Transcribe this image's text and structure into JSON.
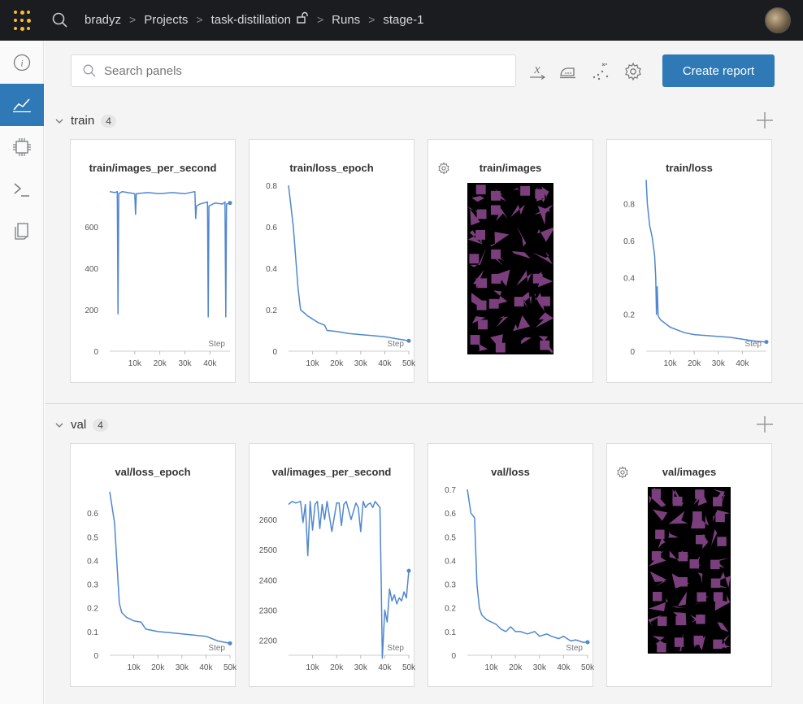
{
  "topbar": {
    "breadcrumb": [
      "bradyz",
      "Projects",
      "task-distillation",
      "Runs",
      "stage-1"
    ],
    "separator": ">"
  },
  "toolbar": {
    "search_placeholder": "Search panels",
    "create_report_label": "Create report"
  },
  "colors": {
    "accent": "#2e79b6",
    "line": "#5087d0",
    "imgfill": "#7b3f7e",
    "topbar": "#1a1c1f"
  },
  "sections": [
    {
      "title": "train",
      "count": "4",
      "panels": [
        {
          "title": "train/images_per_second",
          "kind": "chart",
          "chart": 0
        },
        {
          "title": "train/loss_epoch",
          "kind": "chart",
          "chart": 1
        },
        {
          "title": "train/images",
          "kind": "images"
        },
        {
          "title": "train/loss",
          "kind": "chart",
          "chart": 2
        }
      ]
    },
    {
      "title": "val",
      "count": "4",
      "panels": [
        {
          "title": "val/loss_epoch",
          "kind": "chart",
          "chart": 3
        },
        {
          "title": "val/images_per_second",
          "kind": "chart",
          "chart": 4
        },
        {
          "title": "val/loss",
          "kind": "chart",
          "chart": 5
        },
        {
          "title": "val/images",
          "kind": "images"
        }
      ]
    }
  ],
  "chart_data": [
    {
      "type": "line",
      "title": "train/images_per_second",
      "xlabel": "Step",
      "xlim": [
        0,
        48000
      ],
      "ylim": [
        0,
        800
      ],
      "xticks": [
        10000,
        20000,
        30000,
        40000
      ],
      "xtick_labels": [
        "10k",
        "20k",
        "30k",
        "40k"
      ],
      "yticks": [
        0,
        200,
        400,
        600
      ],
      "ytick_labels": [
        "0",
        "200",
        "400",
        "600"
      ],
      "x": [
        0,
        2000,
        3000,
        3300,
        3600,
        5000,
        10000,
        10300,
        10600,
        15000,
        20000,
        25000,
        30000,
        34000,
        34300,
        34600,
        36000,
        39000,
        39300,
        39600,
        42000,
        45000,
        46000,
        46300,
        46600,
        48000
      ],
      "y": [
        770,
        765,
        770,
        180,
        760,
        770,
        760,
        660,
        760,
        765,
        760,
        765,
        760,
        770,
        640,
        700,
        710,
        720,
        165,
        700,
        715,
        710,
        720,
        165,
        710,
        715
      ]
    },
    {
      "type": "line",
      "title": "train/loss_epoch",
      "xlabel": "Step",
      "xlim": [
        0,
        50000
      ],
      "ylim": [
        0,
        0.8
      ],
      "xticks": [
        10000,
        20000,
        30000,
        40000,
        50000
      ],
      "xtick_labels": [
        "10k",
        "20k",
        "30k",
        "40k",
        "50k"
      ],
      "yticks": [
        0,
        0.2,
        0.4,
        0.6,
        0.8
      ],
      "ytick_labels": [
        "0",
        "0.2",
        "0.4",
        "0.6",
        "0.8"
      ],
      "x": [
        0,
        2000,
        4000,
        5000,
        8000,
        12000,
        15000,
        16000,
        20000,
        25000,
        30000,
        35000,
        40000,
        45000,
        50000
      ],
      "y": [
        0.8,
        0.6,
        0.3,
        0.2,
        0.17,
        0.14,
        0.125,
        0.1,
        0.095,
        0.085,
        0.08,
        0.075,
        0.07,
        0.06,
        0.05
      ]
    },
    {
      "type": "line",
      "title": "train/loss",
      "xlabel": "Step",
      "xlim": [
        0,
        50000
      ],
      "ylim": [
        0,
        0.9
      ],
      "xticks": [
        10000,
        20000,
        30000,
        40000
      ],
      "xtick_labels": [
        "10k",
        "20k",
        "30k",
        "40k"
      ],
      "yticks": [
        0,
        0.2,
        0.4,
        0.6,
        0.8
      ],
      "ytick_labels": [
        "0",
        "0.2",
        "0.4",
        "0.6",
        "0.8"
      ],
      "x": [
        0,
        500,
        1500,
        2500,
        3500,
        4000,
        4300,
        4600,
        5000,
        6000,
        8000,
        10000,
        13000,
        16000,
        20000,
        25000,
        30000,
        35000,
        40000,
        45000,
        50000
      ],
      "y": [
        0.93,
        0.8,
        0.68,
        0.62,
        0.52,
        0.4,
        0.2,
        0.35,
        0.19,
        0.17,
        0.15,
        0.13,
        0.115,
        0.1,
        0.09,
        0.085,
        0.08,
        0.075,
        0.065,
        0.055,
        0.05
      ]
    },
    {
      "type": "line",
      "title": "val/loss_epoch",
      "xlabel": "Step",
      "xlim": [
        0,
        50000
      ],
      "ylim": [
        0,
        0.7
      ],
      "xticks": [
        10000,
        20000,
        30000,
        40000,
        50000
      ],
      "xtick_labels": [
        "10k",
        "20k",
        "30k",
        "40k",
        "50k"
      ],
      "yticks": [
        0,
        0.1,
        0.2,
        0.3,
        0.4,
        0.5,
        0.6
      ],
      "ytick_labels": [
        "0",
        "0.1",
        "0.2",
        "0.3",
        "0.4",
        "0.5",
        "0.6"
      ],
      "x": [
        0,
        2000,
        4000,
        5000,
        7000,
        10000,
        13000,
        15000,
        20000,
        25000,
        30000,
        35000,
        40000,
        45000,
        50000
      ],
      "y": [
        0.69,
        0.56,
        0.22,
        0.18,
        0.16,
        0.145,
        0.14,
        0.11,
        0.1,
        0.095,
        0.09,
        0.085,
        0.08,
        0.06,
        0.05
      ]
    },
    {
      "type": "line",
      "title": "val/images_per_second",
      "xlabel": "Step",
      "xlim": [
        0,
        50000
      ],
      "ylim": [
        2150,
        2700
      ],
      "xticks": [
        10000,
        20000,
        30000,
        40000,
        50000
      ],
      "xtick_labels": [
        "10k",
        "20k",
        "30k",
        "40k",
        "50k"
      ],
      "yticks": [
        2200,
        2300,
        2400,
        2500,
        2600
      ],
      "ytick_labels": [
        "2200",
        "2300",
        "2400",
        "2500",
        "2600"
      ],
      "x": [
        0,
        1500,
        3000,
        5000,
        6000,
        7000,
        8000,
        9000,
        10000,
        11000,
        12000,
        13000,
        14000,
        15000,
        16000,
        18000,
        20000,
        21000,
        22000,
        23000,
        24000,
        26000,
        28000,
        29000,
        30000,
        31000,
        32000,
        33000,
        34000,
        35000,
        36000,
        37000,
        38000,
        38500,
        39000,
        40000,
        41000,
        42000,
        43000,
        44000,
        45000,
        46000,
        47000,
        48000,
        49000,
        50000
      ],
      "y": [
        2650,
        2660,
        2655,
        2660,
        2590,
        2650,
        2480,
        2660,
        2565,
        2650,
        2660,
        2570,
        2650,
        2600,
        2660,
        2560,
        2655,
        2655,
        2580,
        2650,
        2660,
        2600,
        2655,
        2640,
        2560,
        2660,
        2640,
        2650,
        2655,
        2640,
        2660,
        2650,
        2640,
        2400,
        2140,
        2300,
        2260,
        2370,
        2330,
        2350,
        2320,
        2340,
        2330,
        2360,
        2340,
        2430
      ]
    },
    {
      "type": "line",
      "title": "val/loss",
      "xlabel": "Step",
      "xlim": [
        0,
        50000
      ],
      "ylim": [
        0,
        0.7
      ],
      "xticks": [
        10000,
        20000,
        30000,
        40000,
        50000
      ],
      "xtick_labels": [
        "10k",
        "20k",
        "30k",
        "40k",
        "50k"
      ],
      "yticks": [
        0,
        0.1,
        0.2,
        0.3,
        0.4,
        0.5,
        0.6,
        0.7
      ],
      "ytick_labels": [
        "0",
        "0.1",
        "0.2",
        "0.3",
        "0.4",
        "0.5",
        "0.6",
        "0.7"
      ],
      "x": [
        0,
        1500,
        3000,
        4000,
        5000,
        6000,
        8000,
        10000,
        12000,
        14000,
        16000,
        18000,
        20000,
        22000,
        25000,
        28000,
        30000,
        33000,
        35000,
        38000,
        40000,
        43000,
        45000,
        48000,
        50000
      ],
      "y": [
        0.7,
        0.6,
        0.58,
        0.3,
        0.2,
        0.17,
        0.15,
        0.14,
        0.13,
        0.11,
        0.1,
        0.12,
        0.1,
        0.1,
        0.09,
        0.1,
        0.08,
        0.09,
        0.08,
        0.07,
        0.08,
        0.06,
        0.065,
        0.055,
        0.055
      ]
    }
  ]
}
